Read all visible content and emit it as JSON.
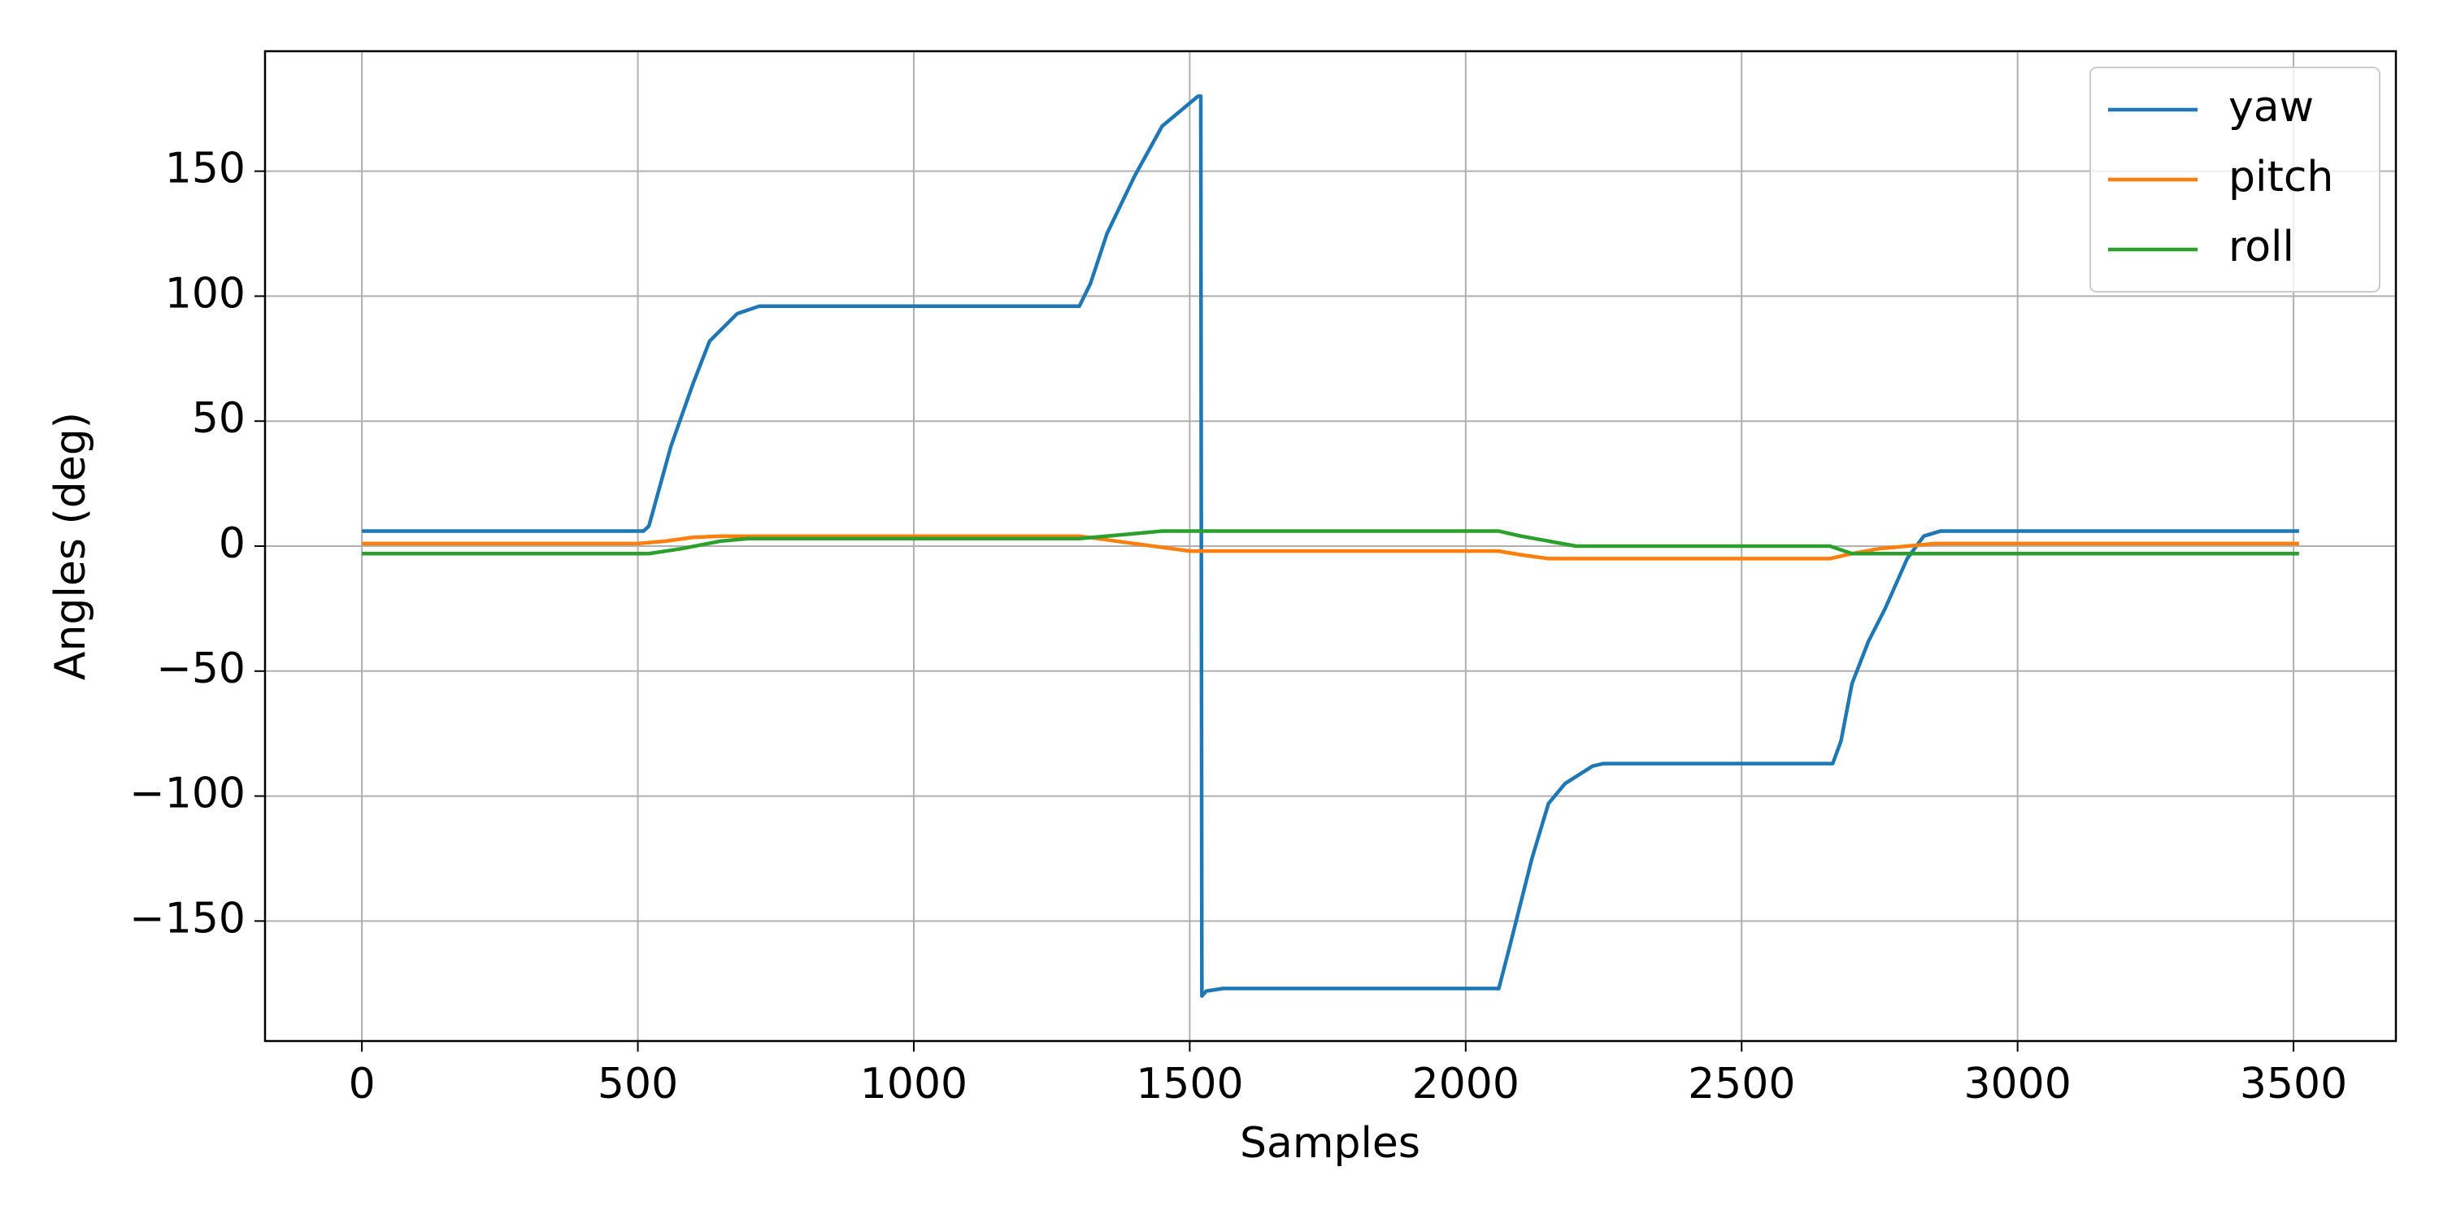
{
  "chart_data": {
    "type": "line",
    "xlabel": "Samples",
    "ylabel": "Angles (deg)",
    "xlim": [
      -175.5,
      3685.5
    ],
    "ylim": [
      -198,
      198
    ],
    "xticks": [
      0,
      500,
      1000,
      1500,
      2000,
      2500,
      3000,
      3500
    ],
    "yticks": [
      {
        "value": -150,
        "label": "−150"
      },
      {
        "value": -100,
        "label": "−100"
      },
      {
        "value": -50,
        "label": "−50"
      },
      0,
      50,
      100,
      150
    ],
    "grid": true,
    "legend": "upper right",
    "series": [
      {
        "name": "yaw",
        "color": "#1f77b4",
        "x": [
          0,
          510,
          520,
          560,
          600,
          630,
          680,
          720,
          1300,
          1320,
          1350,
          1400,
          1450,
          1515,
          1520,
          1522,
          1530,
          1560,
          2060,
          2080,
          2120,
          2150,
          2180,
          2230,
          2250,
          2665,
          2680,
          2700,
          2730,
          2760,
          2800,
          2830,
          2860,
          3510
        ],
        "values": [
          6,
          6,
          8,
          40,
          65,
          82,
          93,
          96,
          96,
          105,
          125,
          148,
          168,
          180,
          180,
          -180,
          -178,
          -177,
          -177,
          -160,
          -125,
          -103,
          -95,
          -88,
          -87,
          -87,
          -78,
          -55,
          -38,
          -25,
          -5,
          4,
          6,
          6
        ]
      },
      {
        "name": "pitch",
        "color": "#ff7f0e",
        "x": [
          0,
          500,
          550,
          600,
          650,
          1300,
          1400,
          1500,
          2060,
          2100,
          2150,
          2660,
          2700,
          2750,
          2800,
          2850,
          3510
        ],
        "values": [
          1,
          1,
          2,
          3.5,
          4,
          4,
          1,
          -2,
          -2,
          -3.5,
          -5,
          -5,
          -3,
          -1,
          0,
          1,
          1
        ]
      },
      {
        "name": "roll",
        "color": "#2ca02c",
        "x": [
          0,
          520,
          580,
          650,
          700,
          1300,
          1400,
          1450,
          2060,
          2100,
          2150,
          2200,
          2660,
          2700,
          3510
        ],
        "values": [
          -3,
          -3,
          -1,
          2,
          3,
          3,
          5,
          6,
          6,
          4,
          2,
          0,
          0,
          -3,
          -3
        ]
      }
    ]
  }
}
